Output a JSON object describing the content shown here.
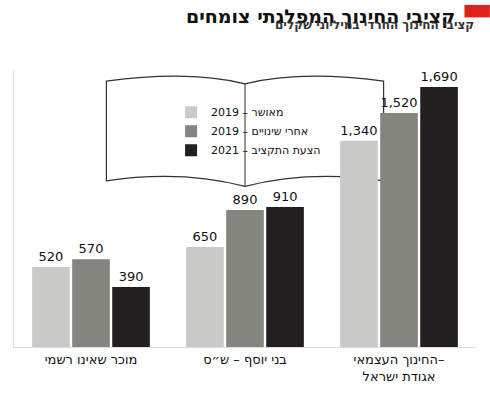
{
  "chart_data": {
    "type": "bar",
    "title": "קציבי החינוך המפלגתי צומחים",
    "subtitle": "קציבי החינוך החרדי במיליוני שקלים",
    "categories": [
      "מוכר שאינו רשמי",
      "בני יוסף – ש״ס",
      "החינוך העצמאי–\nאגודת ישראל"
    ],
    "series": [
      {
        "name": "2019 – מאושר",
        "color": "#c9c9c7",
        "values": [
          520,
          650,
          1340
        ]
      },
      {
        "name": "2019 – אחרי שינויים",
        "color": "#85857f",
        "values": [
          570,
          890,
          1520
        ]
      },
      {
        "name": "2021 – הצעת התקציב",
        "color": "#231f20",
        "values": [
          390,
          910,
          1690
        ]
      }
    ],
    "ylim": [
      0,
      1800
    ],
    "data_labels": true,
    "tick_labels": "x",
    "grid": false
  }
}
